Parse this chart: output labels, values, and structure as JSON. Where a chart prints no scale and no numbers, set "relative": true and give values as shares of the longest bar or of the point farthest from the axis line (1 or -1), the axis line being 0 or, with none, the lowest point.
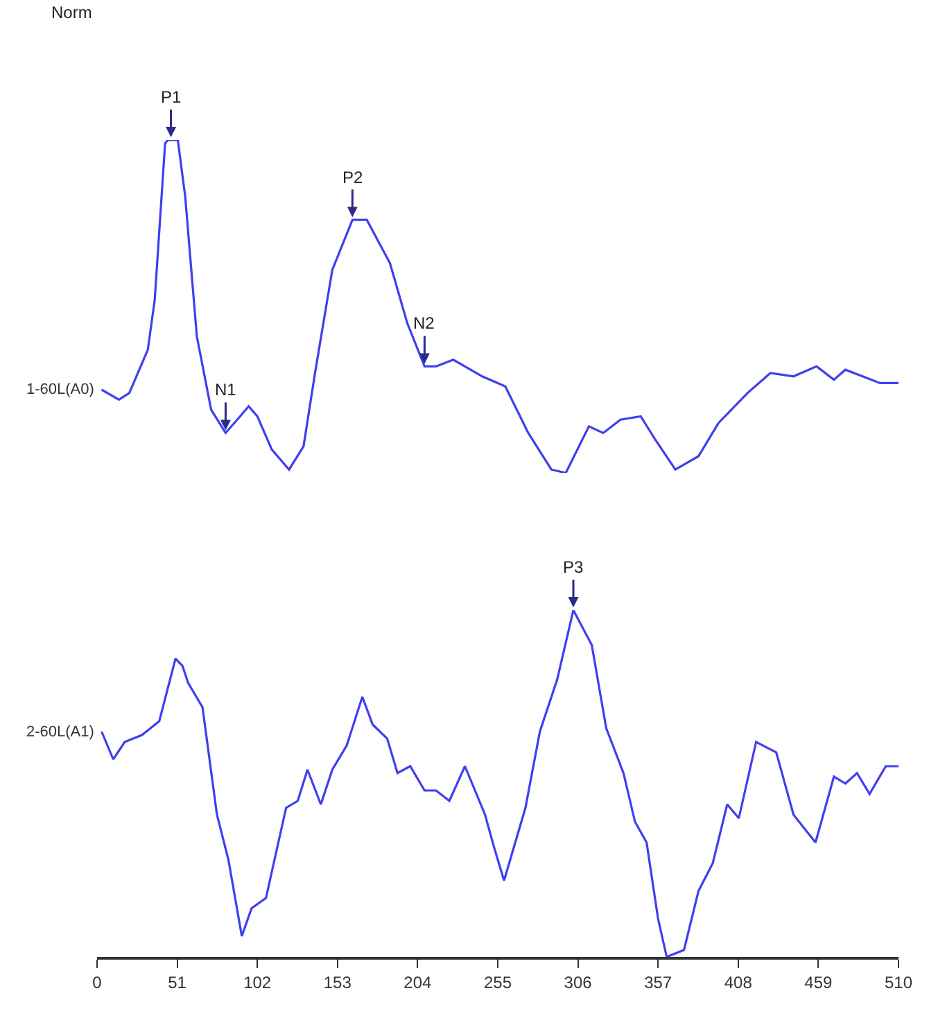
{
  "chart_data": [
    {
      "type": "line",
      "relative": true,
      "tick_labels": false,
      "xlim": [
        0,
        510
      ],
      "x": [
        2.9,
        13.9,
        20.5,
        32.3,
        36.7,
        43.3,
        45.1,
        51.4,
        56.1,
        63.5,
        72.6,
        81.8,
        89.2,
        96.5,
        102.0,
        111.2,
        122.2,
        131.4,
        138.7,
        149.7,
        162.5,
        171.7,
        186.4,
        197.4,
        208.4,
        215.7,
        226.7,
        245.1,
        259.8,
        274.4,
        289.1,
        298.3,
        313.0,
        322.1,
        333.1,
        346.0,
        355.2,
        368.0,
        382.7,
        395.5,
        413.9,
        428.5,
        443.2,
        457.9,
        468.9,
        476.2,
        498.2,
        510
      ],
      "series": [
        {
          "name": "1-60L(A0)",
          "color": "#3f3ff0",
          "values": [
            0.25,
            0.22,
            0.24,
            0.37,
            0.52,
            0.99,
            1.0,
            1.0,
            0.83,
            0.41,
            0.19,
            0.12,
            0.16,
            0.2,
            0.17,
            0.07,
            0.01,
            0.08,
            0.3,
            0.61,
            0.76,
            0.76,
            0.63,
            0.45,
            0.32,
            0.32,
            0.34,
            0.29,
            0.26,
            0.12,
            0.01,
            0.0,
            0.14,
            0.12,
            0.16,
            0.17,
            0.1,
            0.01,
            0.05,
            0.15,
            0.24,
            0.3,
            0.29,
            0.32,
            0.28,
            0.31,
            0.27,
            0.27
          ]
        }
      ],
      "annotations": [
        "Norm",
        {
          "text": "P1",
          "x": 47,
          "y": 1.0
        },
        {
          "text": "N1",
          "x": 81.8,
          "y": 0.12
        },
        {
          "text": "P2",
          "x": 162.5,
          "y": 0.76
        },
        {
          "text": "N2",
          "x": 208.4,
          "y": 0.32
        }
      ]
    },
    {
      "type": "line",
      "relative": true,
      "xlim": [
        0,
        510
      ],
      "xticks": [
        0,
        51,
        102,
        153,
        204,
        255,
        306,
        357,
        408,
        459,
        510
      ],
      "x": [
        2.9,
        10.3,
        17.6,
        28.6,
        39.6,
        49.9,
        54.3,
        58.0,
        67.1,
        76.3,
        83.6,
        92.1,
        98.3,
        107.5,
        120.3,
        127.7,
        133.9,
        142.4,
        149.7,
        158.9,
        168.8,
        175.4,
        184.6,
        191.2,
        199.3,
        208.4,
        215.7,
        224.2,
        234.1,
        246.9,
        252.4,
        259.0,
        272.6,
        281.8,
        292.8,
        303.1,
        314.8,
        324.0,
        335.0,
        342.3,
        349.7,
        357.0,
        362.5,
        373.5,
        382.7,
        391.8,
        401.0,
        408.4,
        419.4,
        432.2,
        443.2,
        457.2,
        468.9,
        476.2,
        483.6,
        491.6,
        501.9,
        510
      ],
      "series": [
        {
          "name": "2-60L(A1)",
          "color": "#3f3ff0",
          "values": [
            0.65,
            0.57,
            0.62,
            0.64,
            0.68,
            0.86,
            0.84,
            0.79,
            0.72,
            0.41,
            0.28,
            0.06,
            0.14,
            0.17,
            0.43,
            0.45,
            0.54,
            0.44,
            0.54,
            0.61,
            0.75,
            0.67,
            0.63,
            0.53,
            0.55,
            0.48,
            0.48,
            0.45,
            0.55,
            0.41,
            0.32,
            0.22,
            0.43,
            0.65,
            0.8,
            1.0,
            0.9,
            0.66,
            0.53,
            0.39,
            0.33,
            0.11,
            0.0,
            0.02,
            0.19,
            0.27,
            0.44,
            0.4,
            0.62,
            0.59,
            0.41,
            0.33,
            0.52,
            0.5,
            0.53,
            0.47,
            0.55,
            0.55
          ]
        }
      ],
      "annotations": [
        {
          "text": "P3",
          "x": 303.1,
          "y": 1.0
        }
      ]
    }
  ]
}
